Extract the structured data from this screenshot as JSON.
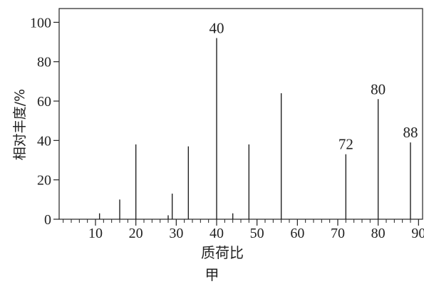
{
  "chart_data": {
    "type": "bar",
    "xlabel": "质荷比",
    "ylabel": "相对丰度/%",
    "xlim": [
      1,
      91
    ],
    "ylim": [
      0,
      107
    ],
    "x_ticks": [
      10,
      20,
      30,
      40,
      50,
      60,
      70,
      80,
      90
    ],
    "y_ticks": [
      0,
      20,
      40,
      60,
      80,
      100
    ],
    "grid": false,
    "x": [
      11,
      16,
      20,
      28,
      29,
      33,
      40,
      44,
      48,
      56,
      72,
      80,
      88
    ],
    "values": [
      3,
      10,
      38,
      2,
      13,
      37,
      92,
      3,
      38,
      64,
      33,
      61,
      39
    ],
    "peak_labels": [
      {
        "x": 40,
        "text": "40"
      },
      {
        "x": 72,
        "text": "72"
      },
      {
        "x": 80,
        "text": "80"
      },
      {
        "x": 88,
        "text": "88"
      }
    ],
    "caption": "甲"
  },
  "colors": {
    "axis": "#222222",
    "bar": "#222222"
  }
}
